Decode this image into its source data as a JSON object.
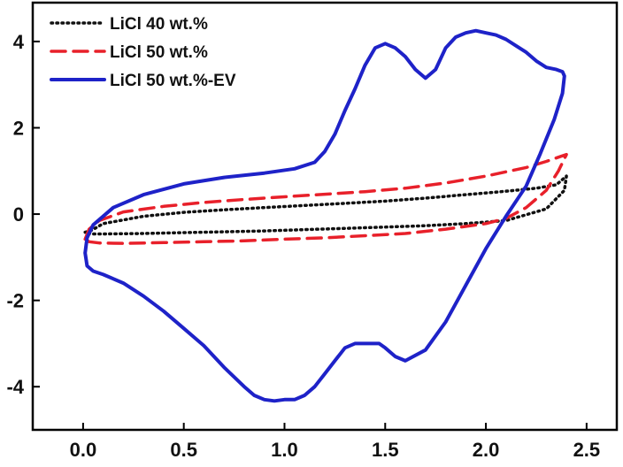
{
  "chart_data": {
    "type": "line",
    "title": "",
    "xlabel": "",
    "ylabel": "",
    "xlim": [
      -0.25,
      2.65
    ],
    "ylim": [
      -5.0,
      4.9
    ],
    "xticks": [
      0.0,
      0.5,
      1.0,
      1.5,
      2.0,
      2.5
    ],
    "xtick_labels": [
      "0.0",
      "0.5",
      "1.0",
      "1.5",
      "2.0",
      "2.5"
    ],
    "yticks": [
      -4,
      -2,
      0,
      2,
      4
    ],
    "ytick_labels": [
      "-4",
      "-2",
      "0",
      "2",
      "4"
    ],
    "grid": false,
    "legend_position": "top-left",
    "series": [
      {
        "name": "LiCl 40 wt.%",
        "color": "#111111",
        "style": "dotted",
        "x": [
          0.01,
          0.04,
          0.1,
          0.3,
          0.5,
          0.7,
          0.9,
          1.1,
          1.3,
          1.5,
          1.7,
          1.9,
          2.1,
          2.25,
          2.35,
          2.4,
          2.39,
          2.3,
          2.1,
          1.9,
          1.7,
          1.5,
          1.3,
          1.1,
          0.9,
          0.7,
          0.5,
          0.3,
          0.1,
          0.04,
          0.01
        ],
        "y": [
          -0.42,
          -0.38,
          -0.22,
          -0.05,
          0.04,
          0.1,
          0.15,
          0.2,
          0.25,
          0.3,
          0.37,
          0.45,
          0.53,
          0.6,
          0.68,
          0.88,
          0.55,
          0.12,
          -0.15,
          -0.22,
          -0.27,
          -0.3,
          -0.33,
          -0.36,
          -0.39,
          -0.41,
          -0.43,
          -0.45,
          -0.46,
          -0.46,
          -0.42
        ]
      },
      {
        "name": "LiCl 50 wt.%",
        "color": "#e8202a",
        "style": "dashed",
        "x": [
          0.01,
          0.03,
          0.08,
          0.2,
          0.4,
          0.6,
          0.8,
          1.0,
          1.2,
          1.4,
          1.6,
          1.8,
          2.0,
          2.2,
          2.3,
          2.38,
          2.4,
          2.36,
          2.3,
          2.2,
          2.1,
          2.0,
          1.8,
          1.6,
          1.4,
          1.2,
          1.0,
          0.8,
          0.6,
          0.4,
          0.2,
          0.08,
          0.03,
          0.01
        ],
        "y": [
          -0.58,
          -0.35,
          -0.15,
          0.05,
          0.18,
          0.27,
          0.34,
          0.4,
          0.46,
          0.52,
          0.6,
          0.72,
          0.88,
          1.08,
          1.22,
          1.35,
          1.38,
          1.0,
          0.55,
          0.15,
          -0.1,
          -0.22,
          -0.35,
          -0.45,
          -0.5,
          -0.55,
          -0.58,
          -0.62,
          -0.64,
          -0.66,
          -0.68,
          -0.67,
          -0.64,
          -0.58
        ]
      },
      {
        "name": "LiCl 50 wt.%-EV",
        "color": "#1e22c8",
        "style": "solid",
        "x": [
          0.01,
          0.02,
          0.05,
          0.15,
          0.3,
          0.5,
          0.7,
          0.9,
          1.05,
          1.15,
          1.2,
          1.25,
          1.3,
          1.35,
          1.4,
          1.45,
          1.5,
          1.55,
          1.6,
          1.65,
          1.7,
          1.75,
          1.8,
          1.85,
          1.9,
          1.95,
          2.0,
          2.05,
          2.1,
          2.15,
          2.2,
          2.25,
          2.3,
          2.35,
          2.38,
          2.39,
          2.38,
          2.34,
          2.27,
          2.2,
          2.1,
          2.0,
          1.9,
          1.8,
          1.7,
          1.6,
          1.55,
          1.5,
          1.47,
          1.45,
          1.4,
          1.35,
          1.3,
          1.25,
          1.2,
          1.15,
          1.1,
          1.05,
          1.0,
          0.95,
          0.9,
          0.85,
          0.8,
          0.7,
          0.6,
          0.5,
          0.4,
          0.3,
          0.2,
          0.1,
          0.05,
          0.02,
          0.01
        ],
        "y": [
          -0.9,
          -0.55,
          -0.25,
          0.15,
          0.45,
          0.7,
          0.85,
          0.95,
          1.05,
          1.2,
          1.45,
          1.85,
          2.4,
          2.9,
          3.45,
          3.85,
          3.95,
          3.85,
          3.65,
          3.35,
          3.15,
          3.35,
          3.85,
          4.1,
          4.2,
          4.25,
          4.2,
          4.15,
          4.05,
          3.9,
          3.75,
          3.55,
          3.4,
          3.35,
          3.3,
          3.2,
          2.8,
          2.2,
          1.4,
          0.65,
          -0.05,
          -0.8,
          -1.65,
          -2.5,
          -3.15,
          -3.4,
          -3.3,
          -3.1,
          -3.0,
          -3.0,
          -3.0,
          -3.0,
          -3.1,
          -3.4,
          -3.7,
          -4.0,
          -4.2,
          -4.3,
          -4.3,
          -4.33,
          -4.3,
          -4.2,
          -4.0,
          -3.55,
          -3.05,
          -2.65,
          -2.25,
          -1.9,
          -1.6,
          -1.4,
          -1.32,
          -1.2,
          -0.9
        ]
      }
    ]
  }
}
